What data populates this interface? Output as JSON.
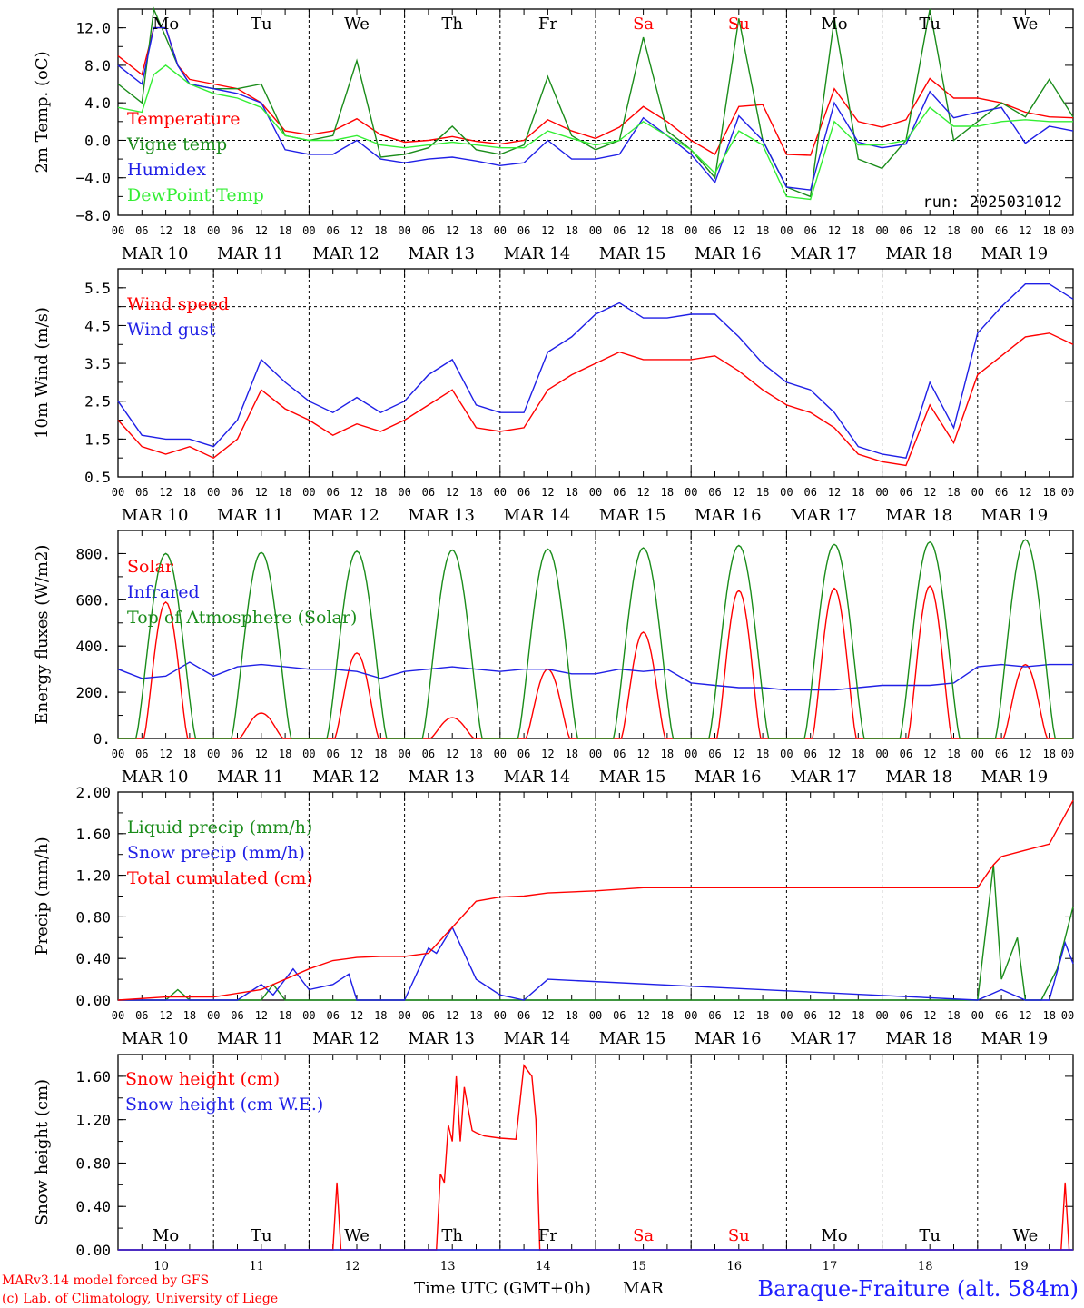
{
  "colors": {
    "red": "#ff0000",
    "green": "#1a8c1a",
    "blue": "#1f1fe6",
    "lightgreen": "#33ee33",
    "weekend": "#ff0000",
    "weekday": "#000000",
    "title": "#2020ff"
  },
  "axis": {
    "x_start_day": 10,
    "n_days": 10,
    "hour_labels": [
      "00",
      "06",
      "12",
      "18"
    ],
    "final_hour_label": "00",
    "date_labels": [
      "MAR 10",
      "MAR 11",
      "MAR 12",
      "MAR 13",
      "MAR 14",
      "MAR 15",
      "MAR 16",
      "MAR 17",
      "MAR 18",
      "MAR 19"
    ],
    "day_labels": [
      "Mo",
      "Tu",
      "We",
      "Th",
      "Fr",
      "Sa",
      "Su",
      "Mo",
      "Tu",
      "We"
    ],
    "weekend_days": [
      "Sa",
      "Su"
    ],
    "day_numbers": [
      "10",
      "11",
      "12",
      "13",
      "14",
      "15",
      "16",
      "17",
      "18",
      "19"
    ]
  },
  "footer": {
    "credit_line1": "MARv3.14 model forced by GFS",
    "credit_line2": "(c) Lab. of Climatology, University of Liege",
    "axis_title": "Time UTC (GMT+0h)",
    "month": "MAR",
    "station": "Baraque-Fraiture (alt. 584m)"
  },
  "chart_data": [
    {
      "type": "line",
      "ylabel": "2m Temp. (oC)",
      "ylim": [
        -8,
        14
      ],
      "yticks": [
        "12.0",
        "8.0",
        "4.0",
        "0.0",
        "−4.0",
        "−8.0"
      ],
      "ytick_values": [
        12,
        8,
        4,
        0,
        -4,
        -8
      ],
      "ref_line": 0,
      "annotation": "run: 2025031012",
      "x_unit": "hours since MAR 10 00 UTC",
      "series": [
        {
          "name": "Temperature",
          "color": "red",
          "x": [
            0,
            6,
            9,
            12,
            15,
            18,
            24,
            30,
            36,
            42,
            48,
            54,
            60,
            66,
            72,
            78,
            84,
            90,
            96,
            102,
            108,
            114,
            120,
            126,
            132,
            138,
            144,
            150,
            156,
            162,
            168,
            174,
            180,
            186,
            192,
            198,
            204,
            210,
            216,
            222,
            228,
            234,
            240
          ],
          "y": [
            9,
            7,
            12,
            12,
            8,
            6.5,
            6,
            5.5,
            4,
            1,
            0.6,
            1,
            2.3,
            0.6,
            -0.2,
            0,
            0.4,
            -0.1,
            -0.4,
            0,
            2.2,
            1,
            0.2,
            1.4,
            3.6,
            2,
            0,
            -1.5,
            3.6,
            3.8,
            -1.5,
            -1.6,
            5.5,
            2,
            1.4,
            2.2,
            6.6,
            4.5,
            4.5,
            4,
            3,
            2.5,
            2.4
          ]
        },
        {
          "name": "Vigne temp",
          "color": "green",
          "x": [
            0,
            6,
            9,
            12,
            15,
            18,
            24,
            30,
            36,
            42,
            48,
            54,
            60,
            66,
            72,
            78,
            84,
            90,
            96,
            102,
            108,
            114,
            120,
            126,
            132,
            138,
            144,
            150,
            156,
            162,
            168,
            174,
            180,
            186,
            192,
            198,
            204,
            210,
            216,
            222,
            228,
            234,
            240
          ],
          "y": [
            6,
            4,
            14,
            11,
            8,
            6,
            5.5,
            5.5,
            6,
            0.5,
            0,
            0.5,
            8.5,
            -1.8,
            -1.5,
            -0.8,
            1.5,
            -1,
            -1.5,
            -0.5,
            6.8,
            0.5,
            -1,
            0,
            11,
            1,
            -1,
            -4,
            13,
            0,
            -5,
            -6,
            13,
            -2,
            -3,
            0,
            14,
            0,
            2,
            4,
            2.5,
            6.5,
            2.5
          ]
        },
        {
          "name": "Humidex",
          "color": "blue",
          "x": [
            0,
            6,
            9,
            12,
            15,
            18,
            24,
            30,
            36,
            42,
            48,
            54,
            60,
            66,
            72,
            78,
            84,
            90,
            96,
            102,
            108,
            114,
            120,
            126,
            132,
            138,
            144,
            150,
            156,
            162,
            168,
            174,
            180,
            186,
            192,
            198,
            204,
            210,
            216,
            222,
            228,
            234,
            240
          ],
          "y": [
            8,
            6,
            12,
            12,
            8,
            6,
            5.5,
            5,
            4,
            -1,
            -1.5,
            -1.5,
            0,
            -2,
            -2.4,
            -2,
            -1.8,
            -2.2,
            -2.7,
            -2.4,
            0,
            -2,
            -2,
            -1.5,
            2.4,
            0.5,
            -1.5,
            -4.5,
            2.6,
            0,
            -5,
            -5.3,
            4,
            -0.2,
            -0.8,
            -0.4,
            5.2,
            2.4,
            3,
            3.5,
            -0.3,
            1.5,
            1
          ]
        },
        {
          "name": "DewPoint Temp",
          "color": "lightgreen",
          "x": [
            0,
            6,
            9,
            12,
            15,
            18,
            24,
            30,
            36,
            42,
            48,
            54,
            60,
            66,
            72,
            78,
            84,
            90,
            96,
            102,
            108,
            114,
            120,
            126,
            132,
            138,
            144,
            150,
            156,
            162,
            168,
            174,
            180,
            186,
            192,
            198,
            204,
            210,
            216,
            222,
            228,
            234,
            240
          ],
          "y": [
            3.5,
            3,
            7,
            8,
            7,
            6,
            5,
            4.5,
            3.5,
            0.5,
            0,
            0,
            0.5,
            -0.5,
            -0.8,
            -0.5,
            -0.2,
            -0.5,
            -0.8,
            -0.8,
            1,
            0.2,
            -0.5,
            0,
            2,
            0.5,
            -1,
            -3.5,
            1,
            -0.5,
            -6,
            -6.3,
            2,
            -0.5,
            -0.5,
            0,
            3.5,
            1.5,
            1.5,
            2,
            2.2,
            2,
            2
          ]
        }
      ]
    },
    {
      "type": "line",
      "ylabel": "10m Wind (m/s)",
      "ylim": [
        0.5,
        6
      ],
      "yticks": [
        "5.5",
        "4.5",
        "3.5",
        "2.5",
        "1.5",
        "0.5"
      ],
      "ytick_values": [
        5.5,
        4.5,
        3.5,
        2.5,
        1.5,
        0.5
      ],
      "ref_line": 5,
      "series": [
        {
          "name": "Wind speed",
          "color": "red",
          "x": [
            0,
            6,
            12,
            18,
            24,
            30,
            36,
            42,
            48,
            54,
            60,
            66,
            72,
            78,
            84,
            90,
            96,
            102,
            108,
            114,
            120,
            126,
            132,
            138,
            144,
            150,
            156,
            162,
            168,
            174,
            180,
            186,
            192,
            198,
            204,
            210,
            216,
            222,
            228,
            234,
            240
          ],
          "y": [
            2,
            1.3,
            1.1,
            1.3,
            1,
            1.5,
            2.8,
            2.3,
            2,
            1.6,
            1.9,
            1.7,
            2,
            2.4,
            2.8,
            1.8,
            1.7,
            1.8,
            2.8,
            3.2,
            3.5,
            3.8,
            3.6,
            3.6,
            3.6,
            3.7,
            3.3,
            2.8,
            2.4,
            2.2,
            1.8,
            1.1,
            0.9,
            0.8,
            2.4,
            1.4,
            3.2,
            3.7,
            4.2,
            4.3,
            4
          ]
        },
        {
          "name": "Wind gust",
          "color": "blue",
          "x": [
            0,
            6,
            12,
            18,
            24,
            30,
            36,
            42,
            48,
            54,
            60,
            66,
            72,
            78,
            84,
            90,
            96,
            102,
            108,
            114,
            120,
            126,
            132,
            138,
            144,
            150,
            156,
            162,
            168,
            174,
            180,
            186,
            192,
            198,
            204,
            210,
            216,
            222,
            228,
            234,
            240
          ],
          "y": [
            2.5,
            1.6,
            1.5,
            1.5,
            1.3,
            2,
            3.6,
            3,
            2.5,
            2.2,
            2.6,
            2.2,
            2.5,
            3.2,
            3.6,
            2.4,
            2.2,
            2.2,
            3.8,
            4.2,
            4.8,
            5.1,
            4.7,
            4.7,
            4.8,
            4.8,
            4.2,
            3.5,
            3,
            2.8,
            2.2,
            1.3,
            1.1,
            1,
            3,
            1.8,
            4.3,
            5,
            5.6,
            5.6,
            5.2
          ]
        }
      ]
    },
    {
      "type": "line",
      "ylabel": "Energy fluxes (W/m2)",
      "ylim": [
        0,
        900
      ],
      "yticks": [
        "800.",
        "600.",
        "400.",
        "200.",
        "0."
      ],
      "ytick_values": [
        800,
        600,
        400,
        200,
        0
      ],
      "series": [
        {
          "name": "Solar",
          "color": "red",
          "daily_peak": [
            590,
            110,
            370,
            90,
            300,
            460,
            640,
            650,
            660,
            320
          ]
        },
        {
          "name": "Infrared",
          "color": "blue",
          "x": [
            0,
            6,
            12,
            18,
            24,
            30,
            36,
            42,
            48,
            54,
            60,
            66,
            72,
            78,
            84,
            90,
            96,
            102,
            108,
            114,
            120,
            126,
            132,
            138,
            144,
            150,
            156,
            162,
            168,
            174,
            180,
            186,
            192,
            198,
            204,
            210,
            216,
            222,
            228,
            234,
            240
          ],
          "y": [
            300,
            260,
            270,
            330,
            270,
            310,
            320,
            310,
            300,
            300,
            290,
            260,
            290,
            300,
            310,
            300,
            290,
            300,
            300,
            280,
            280,
            300,
            290,
            300,
            240,
            230,
            220,
            220,
            210,
            210,
            210,
            220,
            230,
            230,
            230,
            240,
            310,
            320,
            310,
            320,
            320
          ]
        },
        {
          "name": "Top of Atmosphere (Solar)",
          "color": "green",
          "daily_peak": [
            800,
            805,
            810,
            815,
            820,
            825,
            835,
            840,
            850,
            860
          ]
        }
      ]
    },
    {
      "type": "line",
      "ylabel": "Precip (mm/h)",
      "ylim": [
        0,
        2
      ],
      "yticks": [
        "2.00",
        "1.60",
        "1.20",
        "0.80",
        "0.40",
        "0.00"
      ],
      "ytick_values": [
        2,
        1.6,
        1.2,
        0.8,
        0.4,
        0
      ],
      "series": [
        {
          "name": "Liquid precip (mm/h)",
          "color": "green",
          "x": [
            0,
            12,
            15,
            18,
            24,
            36,
            39,
            42,
            48,
            216,
            220,
            222,
            226,
            228,
            232,
            236,
            240
          ],
          "y": [
            0,
            0,
            0.1,
            0,
            0,
            0,
            0.15,
            0,
            0,
            0,
            1.3,
            0.2,
            0.6,
            0,
            0,
            0.3,
            0.9
          ]
        },
        {
          "name": "Snow precip (mm/h)",
          "color": "blue",
          "x": [
            0,
            24,
            30,
            36,
            39,
            42,
            44,
            46,
            48,
            54,
            58,
            60,
            66,
            72,
            78,
            80,
            84,
            90,
            96,
            102,
            108,
            216,
            222,
            228,
            234,
            238,
            240
          ],
          "y": [
            0,
            0,
            0,
            0.15,
            0.05,
            0.2,
            0.3,
            0.2,
            0.1,
            0.15,
            0.25,
            0,
            0,
            0,
            0.5,
            0.45,
            0.7,
            0.2,
            0.05,
            0,
            0.2,
            0,
            0.1,
            0,
            0,
            0.55,
            0.35
          ]
        },
        {
          "name": "Total cumulated (cm)",
          "color": "red",
          "x": [
            0,
            12,
            24,
            36,
            48,
            54,
            60,
            66,
            72,
            78,
            84,
            90,
            96,
            102,
            108,
            120,
            132,
            144,
            156,
            168,
            180,
            192,
            204,
            216,
            220,
            222,
            228,
            234,
            240
          ],
          "y": [
            0,
            0.03,
            0.03,
            0.1,
            0.3,
            0.38,
            0.41,
            0.42,
            0.42,
            0.45,
            0.7,
            0.95,
            0.99,
            1.0,
            1.03,
            1.05,
            1.08,
            1.08,
            1.08,
            1.08,
            1.08,
            1.08,
            1.08,
            1.08,
            1.3,
            1.38,
            1.44,
            1.5,
            1.92
          ]
        }
      ]
    },
    {
      "type": "line",
      "ylabel": "Snow height (cm)",
      "ylim": [
        0,
        1.8
      ],
      "yticks": [
        "1.60",
        "1.20",
        "0.80",
        "0.40",
        "0.00"
      ],
      "ytick_values": [
        1.6,
        1.2,
        0.8,
        0.4,
        0
      ],
      "series": [
        {
          "name": "Snow height (cm)",
          "color": "red",
          "x": [
            0,
            54,
            55,
            56,
            80,
            81,
            82,
            83,
            84,
            85,
            86,
            87,
            88,
            89,
            90,
            92,
            96,
            100,
            102,
            104,
            105,
            106,
            240,
            237,
            238,
            239,
            240
          ],
          "y": [
            0,
            0,
            0.62,
            0,
            0,
            0.7,
            0.62,
            1.15,
            1.0,
            1.6,
            1.0,
            1.5,
            1.3,
            1.1,
            1.08,
            1.05,
            1.03,
            1.02,
            1.7,
            1.6,
            1.2,
            0,
            0,
            0,
            0.62,
            0,
            0
          ]
        },
        {
          "name": "Snow height (cm W.E.)",
          "color": "blue",
          "x": [
            0,
            240
          ],
          "y": [
            0,
            0
          ]
        }
      ]
    }
  ]
}
